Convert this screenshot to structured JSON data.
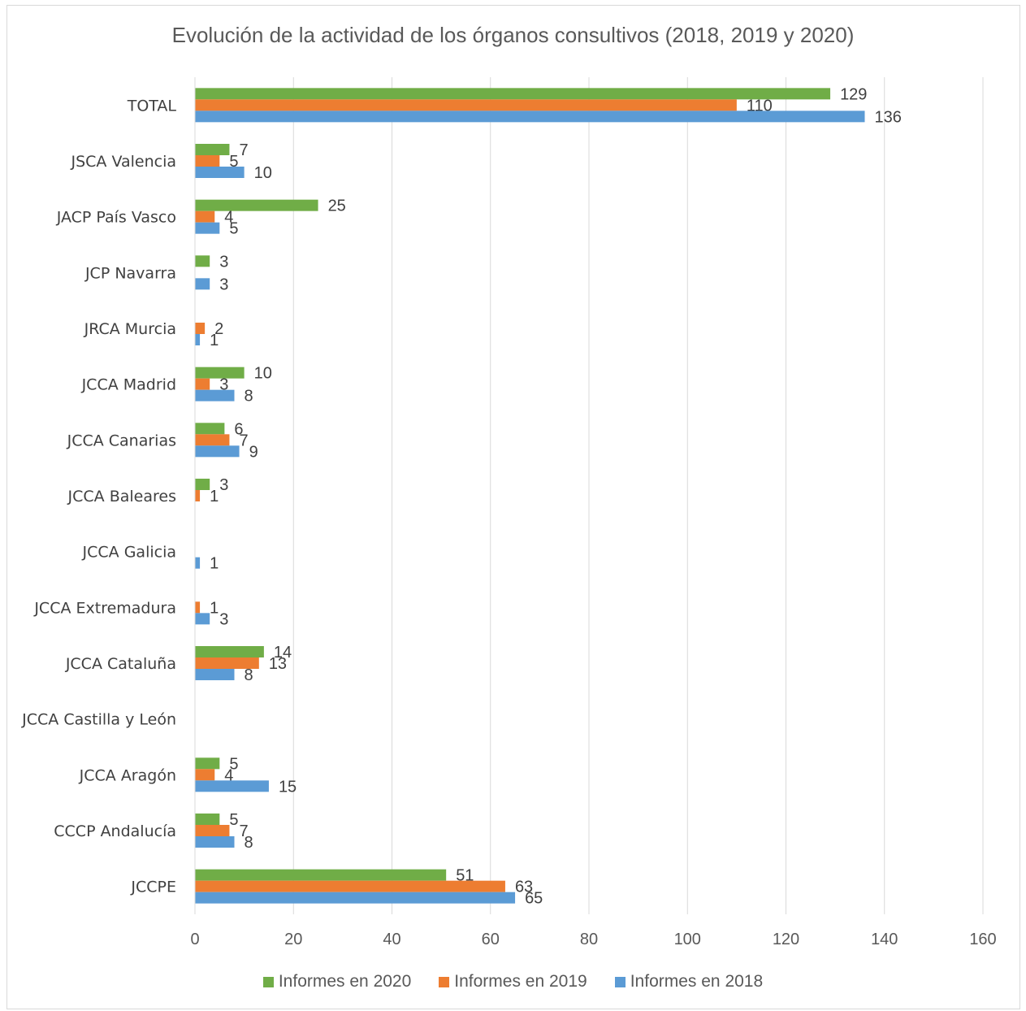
{
  "chart_data": {
    "type": "bar",
    "orientation": "horizontal",
    "title": "Evolución de la actividad de los órganos consultivos (2018, 2019 y 2020)",
    "xlabel": "",
    "ylabel": "",
    "xlim": [
      0,
      160
    ],
    "ticks": [
      "0",
      "20",
      "40",
      "60",
      "80",
      "100",
      "120",
      "140",
      "160"
    ],
    "grid": true,
    "legend_position": "bottom",
    "categories": [
      "TOTAL",
      "JSCA Valencia",
      "JACP País Vasco",
      "JCP Navarra",
      "JRCA Murcia",
      "JCCA Madrid",
      "JCCA Canarias",
      "JCCA Baleares",
      "JCCA Galicia",
      "JCCA Extremadura",
      "JCCA Cataluña",
      "JCCA Castilla y León",
      "JCCA Aragón",
      "CCCP Andalucía",
      "JCCPE"
    ],
    "series": [
      {
        "name": "Informes en 2020",
        "color": "#70ad47",
        "values": [
          129,
          7,
          25,
          3,
          null,
          10,
          6,
          3,
          null,
          null,
          14,
          null,
          5,
          5,
          51
        ]
      },
      {
        "name": "Informes en 2019",
        "color": "#ed7d31",
        "values": [
          110,
          5,
          4,
          null,
          2,
          3,
          7,
          1,
          null,
          1,
          13,
          null,
          4,
          7,
          63
        ]
      },
      {
        "name": "Informes en 2018",
        "color": "#5b9bd5",
        "values": [
          136,
          10,
          5,
          3,
          1,
          8,
          9,
          null,
          1,
          3,
          8,
          null,
          15,
          8,
          65
        ]
      }
    ]
  }
}
